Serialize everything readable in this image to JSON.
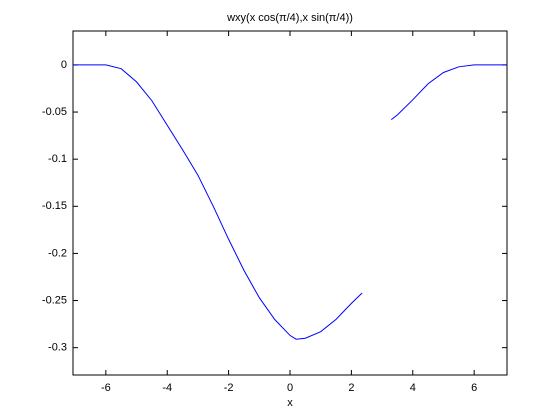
{
  "chart_data": {
    "type": "line",
    "title": "wxy(x cos(π/4),x sin(π/4))",
    "xlabel": "x",
    "x": [
      -7.07,
      -6.5,
      -6,
      -5.5,
      -5,
      -4.5,
      -4,
      -3.5,
      -3,
      -2.5,
      -2,
      -1.5,
      -1,
      -0.5,
      0,
      0.2,
      0.5,
      1,
      1.5,
      2,
      2.35,
      2.8,
      3.3,
      3.5,
      4,
      4.5,
      5,
      5.5,
      6,
      6.5,
      7.07
    ],
    "series": [
      {
        "color": "#0000ff",
        "values": [
          0,
          0,
          0,
          -0.004,
          -0.018,
          -0.038,
          -0.064,
          -0.09,
          -0.117,
          -0.15,
          -0.185,
          -0.218,
          -0.247,
          -0.27,
          -0.287,
          -0.291,
          -0.29,
          -0.283,
          -0.27,
          -0.253,
          -0.242,
          null,
          -0.058,
          -0.053,
          -0.037,
          -0.02,
          -0.008,
          -0.002,
          0,
          0,
          0
        ]
      }
    ],
    "xlim": [
      -7.07,
      7.07
    ],
    "ylim": [
      -0.329,
      0.036
    ],
    "xticks": [
      -6,
      -4,
      -2,
      0,
      2,
      4,
      6
    ],
    "yticks": [
      -0.3,
      -0.25,
      -0.2,
      -0.15,
      -0.1,
      -0.05,
      0
    ]
  }
}
